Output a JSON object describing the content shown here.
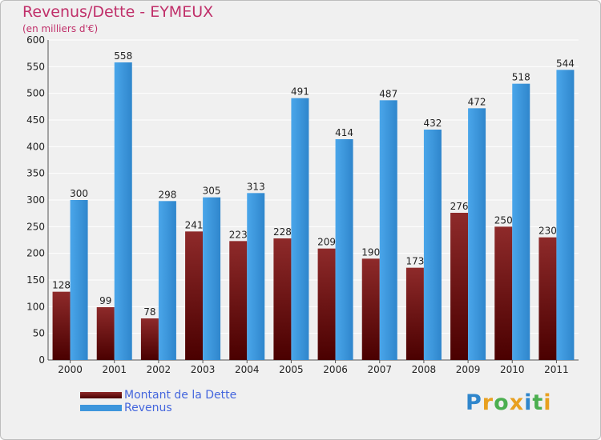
{
  "chart_data": {
    "type": "bar",
    "title": "Revenus/Dette - EYMEUX",
    "subtitle": "(en milliers d'€)",
    "categories": [
      "2000",
      "2001",
      "2002",
      "2003",
      "2004",
      "2005",
      "2006",
      "2007",
      "2008",
      "2009",
      "2010",
      "2011"
    ],
    "series": [
      {
        "name": "Montant de la Dette",
        "color": "#7a1414",
        "values": [
          128,
          99,
          78,
          241,
          223,
          228,
          209,
          190,
          173,
          276,
          250,
          230
        ]
      },
      {
        "name": "Revenus",
        "color": "#3d96dc",
        "values": [
          300,
          558,
          298,
          305,
          313,
          491,
          414,
          487,
          432,
          472,
          518,
          544
        ]
      }
    ],
    "ylim": [
      0,
      600
    ],
    "yticks": [
      0,
      50,
      100,
      150,
      200,
      250,
      300,
      350,
      400,
      450,
      500,
      550,
      600
    ],
    "grid": true,
    "legend": "bottom-left"
  },
  "logo": {
    "text": "Proxiti"
  }
}
